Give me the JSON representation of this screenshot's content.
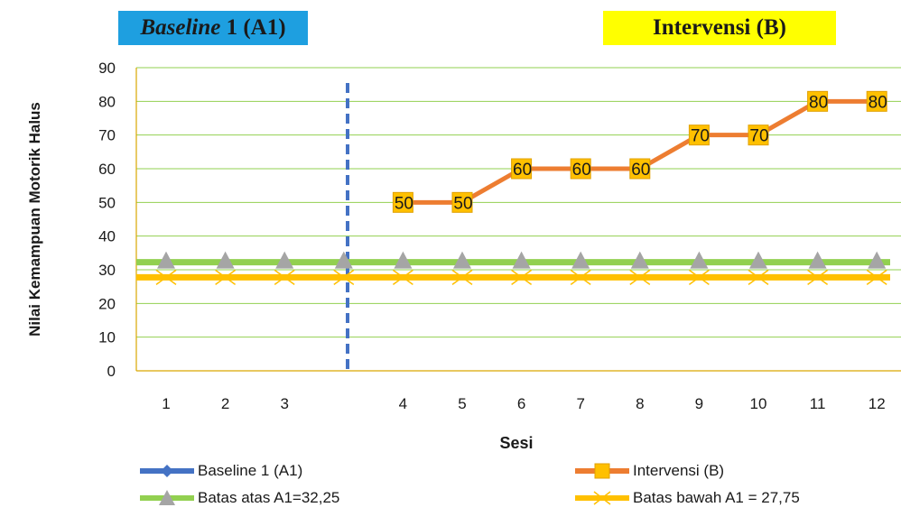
{
  "phase_labels": {
    "baseline_italic": "Baseline",
    "baseline_rest": " 1 (A1)",
    "intervention": "Intervensi (B)"
  },
  "chart_data": {
    "type": "line",
    "xlabel": "Sesi",
    "ylabel": "Nilai Kemampuan Motorik Halus",
    "ylim": [
      0,
      90
    ],
    "yticks": [
      0,
      10,
      20,
      30,
      40,
      50,
      60,
      70,
      80,
      90
    ],
    "categories": [
      "1",
      "2",
      "3",
      "",
      "4",
      "5",
      "6",
      "7",
      "8",
      "9",
      "10",
      "11",
      "12"
    ],
    "grid": true,
    "legend_position": "bottom",
    "series": [
      {
        "name": "Baseline 1 (A1)",
        "color": "#4472c4",
        "marker": "diamond",
        "values": [
          null,
          null,
          null,
          null,
          null,
          null,
          null,
          null,
          null,
          null,
          null,
          null,
          null
        ]
      },
      {
        "name": "Intervensi (B)",
        "color": "#ed7d31",
        "marker": "square",
        "marker_color": "#ffc000",
        "data_labels": true,
        "values": [
          null,
          null,
          null,
          null,
          50,
          50,
          60,
          60,
          60,
          70,
          70,
          80,
          80
        ]
      },
      {
        "name": "Batas atas A1=32,25",
        "color": "#92d050",
        "marker": "triangle",
        "values": [
          32.25,
          32.25,
          32.25,
          32.25,
          32.25,
          32.25,
          32.25,
          32.25,
          32.25,
          32.25,
          32.25,
          32.25,
          32.25
        ]
      },
      {
        "name": "Batas bawah A1 = 27,75",
        "color": "#ffc000",
        "marker": "x",
        "values": [
          27.75,
          27.75,
          27.75,
          27.75,
          27.75,
          27.75,
          27.75,
          27.75,
          27.75,
          27.75,
          27.75,
          27.75,
          27.75
        ]
      }
    ],
    "phase_divider": {
      "style": "dashed",
      "color": "#4472c4",
      "between_categories": [
        3,
        4
      ]
    }
  }
}
